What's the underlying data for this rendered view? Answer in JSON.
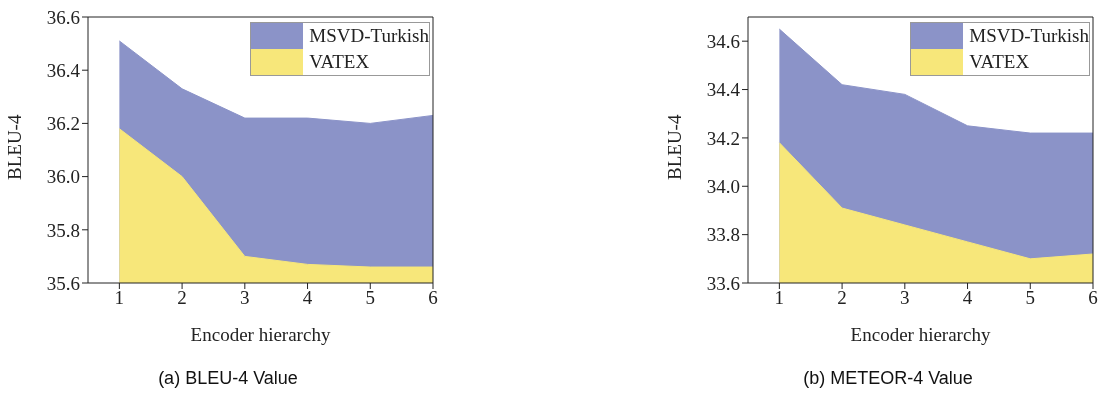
{
  "chart_data": [
    {
      "type": "area",
      "annotations": [
        "(a) BLEU-4 Value"
      ],
      "xlabel": "Encoder hierarchy",
      "ylabel": "BLEU-4",
      "x": [
        1,
        2,
        3,
        4,
        5,
        6
      ],
      "xlim": [
        0.5,
        6
      ],
      "xticks": [
        1,
        2,
        3,
        4,
        5,
        6
      ],
      "ylim": [
        35.6,
        36.6
      ],
      "yticks": [
        35.6,
        35.8,
        {
          "value": 36,
          "label": "36.0"
        },
        36.2,
        36.4,
        36.6
      ],
      "legend": "top right",
      "series": [
        {
          "name": "MSVD-Turkish",
          "color": "#8b93c8",
          "values": [
            36.51,
            36.33,
            36.22,
            36.22,
            36.2,
            36.23
          ]
        },
        {
          "name": "VATEX",
          "color": "#f7e77a",
          "values": [
            36.18,
            36.0,
            35.7,
            35.67,
            35.66,
            35.66
          ]
        }
      ]
    },
    {
      "type": "area",
      "annotations": [
        "(b) METEOR-4 Value"
      ],
      "xlabel": "Encoder hierarchy",
      "ylabel": "BLEU-4",
      "x": [
        1,
        2,
        3,
        4,
        5,
        6
      ],
      "xlim": [
        0.5,
        6
      ],
      "xticks": [
        1,
        2,
        3,
        4,
        5,
        6
      ],
      "ylim": [
        33.6,
        34.7
      ],
      "yticks": [
        33.6,
        33.8,
        {
          "value": 34,
          "label": "34.0"
        },
        34.2,
        34.4,
        34.6
      ],
      "legend": "top right",
      "series": [
        {
          "name": "MSVD-Turkish",
          "color": "#8b93c8",
          "values": [
            34.65,
            34.42,
            34.38,
            34.25,
            34.22,
            34.22
          ]
        },
        {
          "name": "VATEX",
          "color": "#f7e77a",
          "values": [
            34.18,
            33.91,
            33.84,
            33.77,
            33.7,
            33.72
          ]
        }
      ]
    }
  ]
}
